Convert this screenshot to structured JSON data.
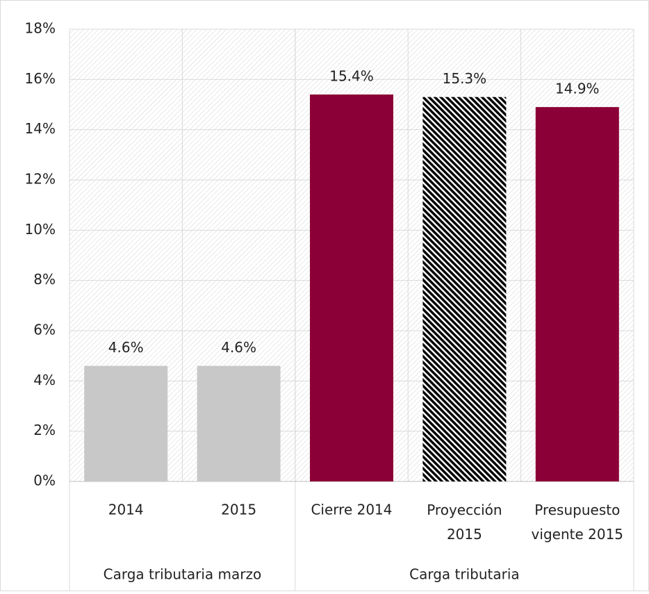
{
  "chart_data": {
    "type": "bar",
    "categories": [
      "2014",
      "2015",
      "Cierre 2014",
      "Proyección 2015",
      "Presupuesto vigente 2015"
    ],
    "values": [
      4.6,
      4.6,
      15.4,
      15.3,
      14.9
    ],
    "value_labels": [
      "4.6%",
      "4.6%",
      "15.4%",
      "15.3%",
      "14.9%"
    ],
    "colors": [
      "#c8c8c8",
      "#c8c8c8",
      "#8b0037",
      "#8b0037",
      "#8b0037"
    ],
    "hatched": [
      false,
      false,
      false,
      true,
      false
    ],
    "groups": [
      {
        "label": "Carga tributaria marzo",
        "count": 2
      },
      {
        "label": "Carga tributaria",
        "count": 3
      }
    ],
    "ylim": [
      0,
      18
    ],
    "yticks": [
      {
        "value": 0,
        "label": "0%"
      },
      {
        "value": 2,
        "label": "2%"
      },
      {
        "value": 4,
        "label": "4%"
      },
      {
        "value": 6,
        "label": "6%"
      },
      {
        "value": 8,
        "label": "8%"
      },
      {
        "value": 10,
        "label": "10%"
      },
      {
        "value": 12,
        "label": "12%"
      },
      {
        "value": 14,
        "label": "14%"
      },
      {
        "value": 16,
        "label": "16%"
      },
      {
        "value": 18,
        "label": "18%"
      }
    ],
    "grid": true
  }
}
